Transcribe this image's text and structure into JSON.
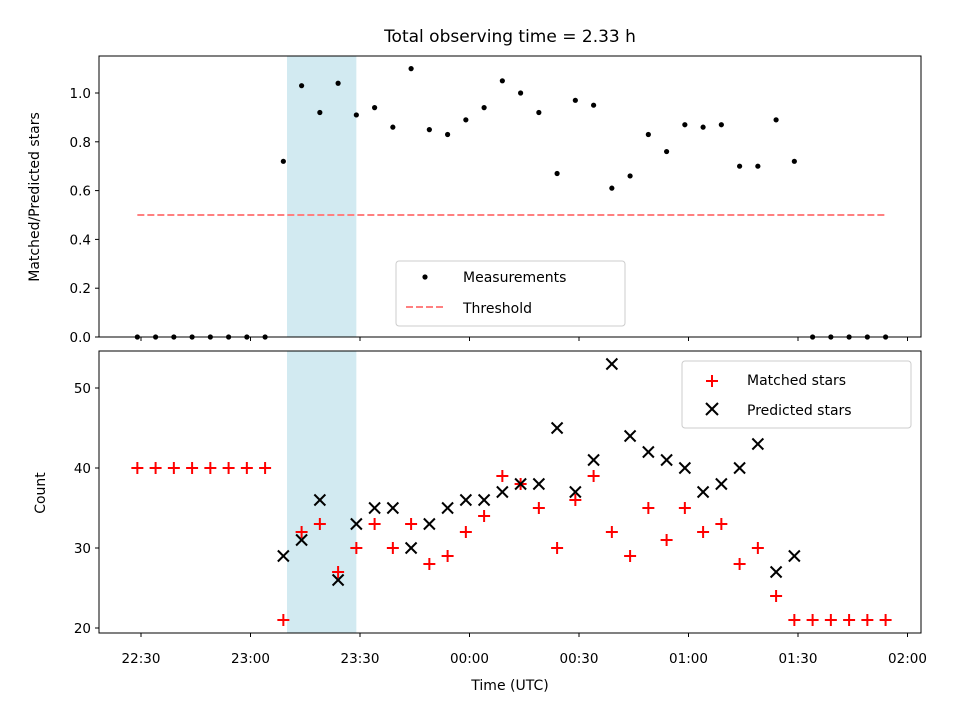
{
  "chart_data": [
    {
      "type": "scatter",
      "title": "Total observing time = 2.33 h",
      "xlabel": "",
      "ylabel": "Matched/Predicted stars",
      "ylim": [
        0,
        1.15
      ],
      "yticks": [
        "0.0",
        "0.2",
        "0.4",
        "0.6",
        "0.8",
        "1.0"
      ],
      "shaded_span": [
        "23:10",
        "23:29"
      ],
      "legend": {
        "placement": "lower-center",
        "entries": [
          "Measurements",
          "Threshold"
        ]
      },
      "threshold": 0.5,
      "series": [
        {
          "name": "Measurements",
          "x": [
            "22:29",
            "22:34",
            "22:39",
            "22:44",
            "22:49",
            "22:54",
            "22:59",
            "23:04",
            "23:09",
            "23:14",
            "23:19",
            "23:24",
            "23:29",
            "23:34",
            "23:39",
            "23:44",
            "23:49",
            "23:54",
            "23:59",
            "00:04",
            "00:09",
            "00:14",
            "00:19",
            "00:24",
            "00:29",
            "00:34",
            "00:39",
            "00:44",
            "00:49",
            "00:54",
            "00:59",
            "01:04",
            "01:09",
            "01:14",
            "01:19",
            "01:24",
            "01:29",
            "01:34",
            "01:39",
            "01:44",
            "01:49",
            "01:54"
          ],
          "y": [
            0,
            0,
            0,
            0,
            0,
            0,
            0,
            0,
            0.72,
            1.03,
            0.92,
            1.04,
            0.91,
            0.94,
            0.86,
            1.1,
            0.85,
            0.83,
            0.89,
            0.94,
            1.05,
            1.0,
            0.92,
            0.67,
            0.97,
            0.95,
            0.61,
            0.66,
            0.83,
            0.76,
            0.87,
            0.86,
            0.87,
            0.7,
            0.7,
            0.89,
            0.72,
            0,
            0,
            0,
            0,
            0
          ]
        }
      ]
    },
    {
      "type": "scatter",
      "title": "",
      "xlabel": "Time (UTC)",
      "ylabel": "Count",
      "ylim": [
        19.5,
        54.5
      ],
      "yticks": [
        "20",
        "30",
        "40",
        "50"
      ],
      "xticks": [
        "22:30",
        "23:00",
        "23:30",
        "00:00",
        "00:30",
        "01:00",
        "01:30",
        "02:00"
      ],
      "legend": {
        "placement": "upper-right",
        "entries": [
          "Matched stars",
          "Predicted stars"
        ]
      },
      "series": [
        {
          "name": "Matched stars",
          "color": "#ff0000",
          "marker": "+",
          "x": [
            "22:29",
            "22:34",
            "22:39",
            "22:44",
            "22:49",
            "22:54",
            "22:59",
            "23:04",
            "23:09",
            "23:14",
            "23:19",
            "23:24",
            "23:29",
            "23:34",
            "23:39",
            "23:44",
            "23:49",
            "23:54",
            "23:59",
            "00:04",
            "00:09",
            "00:14",
            "00:19",
            "00:24",
            "00:29",
            "00:34",
            "00:39",
            "00:44",
            "00:49",
            "00:54",
            "00:59",
            "01:04",
            "01:09",
            "01:14",
            "01:19",
            "01:24",
            "01:29",
            "01:34",
            "01:39",
            "01:44",
            "01:49",
            "01:54"
          ],
          "y": [
            40,
            40,
            40,
            40,
            40,
            40,
            40,
            40,
            21,
            32,
            33,
            27,
            30,
            33,
            30,
            33,
            28,
            29,
            32,
            34,
            39,
            38,
            35,
            30,
            36,
            39,
            32,
            29,
            35,
            31,
            35,
            32,
            33,
            28,
            30,
            24,
            21,
            21,
            21,
            21,
            21,
            21
          ]
        },
        {
          "name": "Predicted stars",
          "color": "#000000",
          "marker": "x",
          "x": [
            "23:09",
            "23:14",
            "23:19",
            "23:24",
            "23:29",
            "23:34",
            "23:39",
            "23:44",
            "23:49",
            "23:54",
            "23:59",
            "00:04",
            "00:09",
            "00:14",
            "00:19",
            "00:24",
            "00:29",
            "00:34",
            "00:39",
            "00:44",
            "00:49",
            "00:54",
            "00:59",
            "01:04",
            "01:09",
            "01:14",
            "01:19",
            "01:24",
            "01:29"
          ],
          "y": [
            29,
            31,
            36,
            26,
            33,
            35,
            35,
            30,
            33,
            35,
            36,
            36,
            37,
            38,
            38,
            45,
            37,
            41,
            53,
            44,
            42,
            41,
            40,
            37,
            38,
            40,
            43,
            27,
            29
          ]
        }
      ]
    }
  ]
}
